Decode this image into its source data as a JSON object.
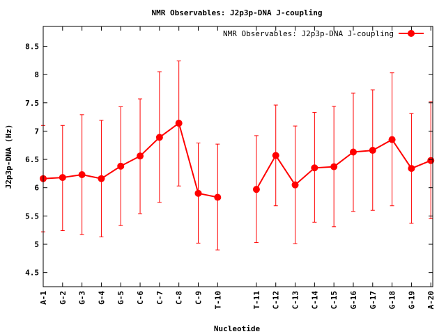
{
  "chart_data": {
    "type": "line",
    "title": "NMR Observables: J2p3p-DNA J-coupling",
    "xlabel": "Nucleotide",
    "ylabel": "J2p3p-DNA (Hz)",
    "ylim": [
      4.25,
      8.85
    ],
    "yticks": [
      "4.5",
      "5",
      "5.5",
      "6",
      "6.5",
      "7",
      "7.5",
      "8",
      "8.5"
    ],
    "legend_position": "top-right",
    "grid": false,
    "colors": {
      "series": "#ff0000",
      "axes": "#000000"
    },
    "categories": [
      "A-1",
      "G-2",
      "G-3",
      "G-4",
      "G-5",
      "C-6",
      "C-7",
      "C-8",
      "C-9",
      "T-10",
      "T-11",
      "C-12",
      "C-13",
      "C-14",
      "C-15",
      "G-16",
      "G-17",
      "G-18",
      "G-19",
      "A-20"
    ],
    "x": [
      1,
      2,
      3,
      4,
      5,
      6,
      7,
      8,
      9,
      10,
      12,
      13,
      14,
      15,
      16,
      17,
      18,
      19,
      20,
      21
    ],
    "series": [
      {
        "name": "NMR Observables: J2p3p-DNA J-coupling",
        "values": [
          6.16,
          6.18,
          6.23,
          6.16,
          6.38,
          6.56,
          6.89,
          7.14,
          5.9,
          5.83,
          5.97,
          6.57,
          6.05,
          6.35,
          6.37,
          6.63,
          6.66,
          6.85,
          6.34,
          6.48
        ],
        "err_low": [
          5.22,
          5.24,
          5.17,
          5.13,
          5.33,
          5.54,
          5.74,
          6.03,
          5.02,
          4.9,
          5.03,
          5.68,
          5.01,
          5.39,
          5.31,
          5.58,
          5.6,
          5.68,
          5.37,
          5.45
        ],
        "err_high": [
          7.1,
          7.1,
          7.29,
          7.19,
          7.43,
          7.57,
          8.05,
          8.24,
          6.79,
          6.77,
          6.92,
          7.46,
          7.09,
          7.33,
          7.44,
          7.67,
          7.73,
          8.03,
          7.31,
          7.52
        ]
      }
    ]
  }
}
